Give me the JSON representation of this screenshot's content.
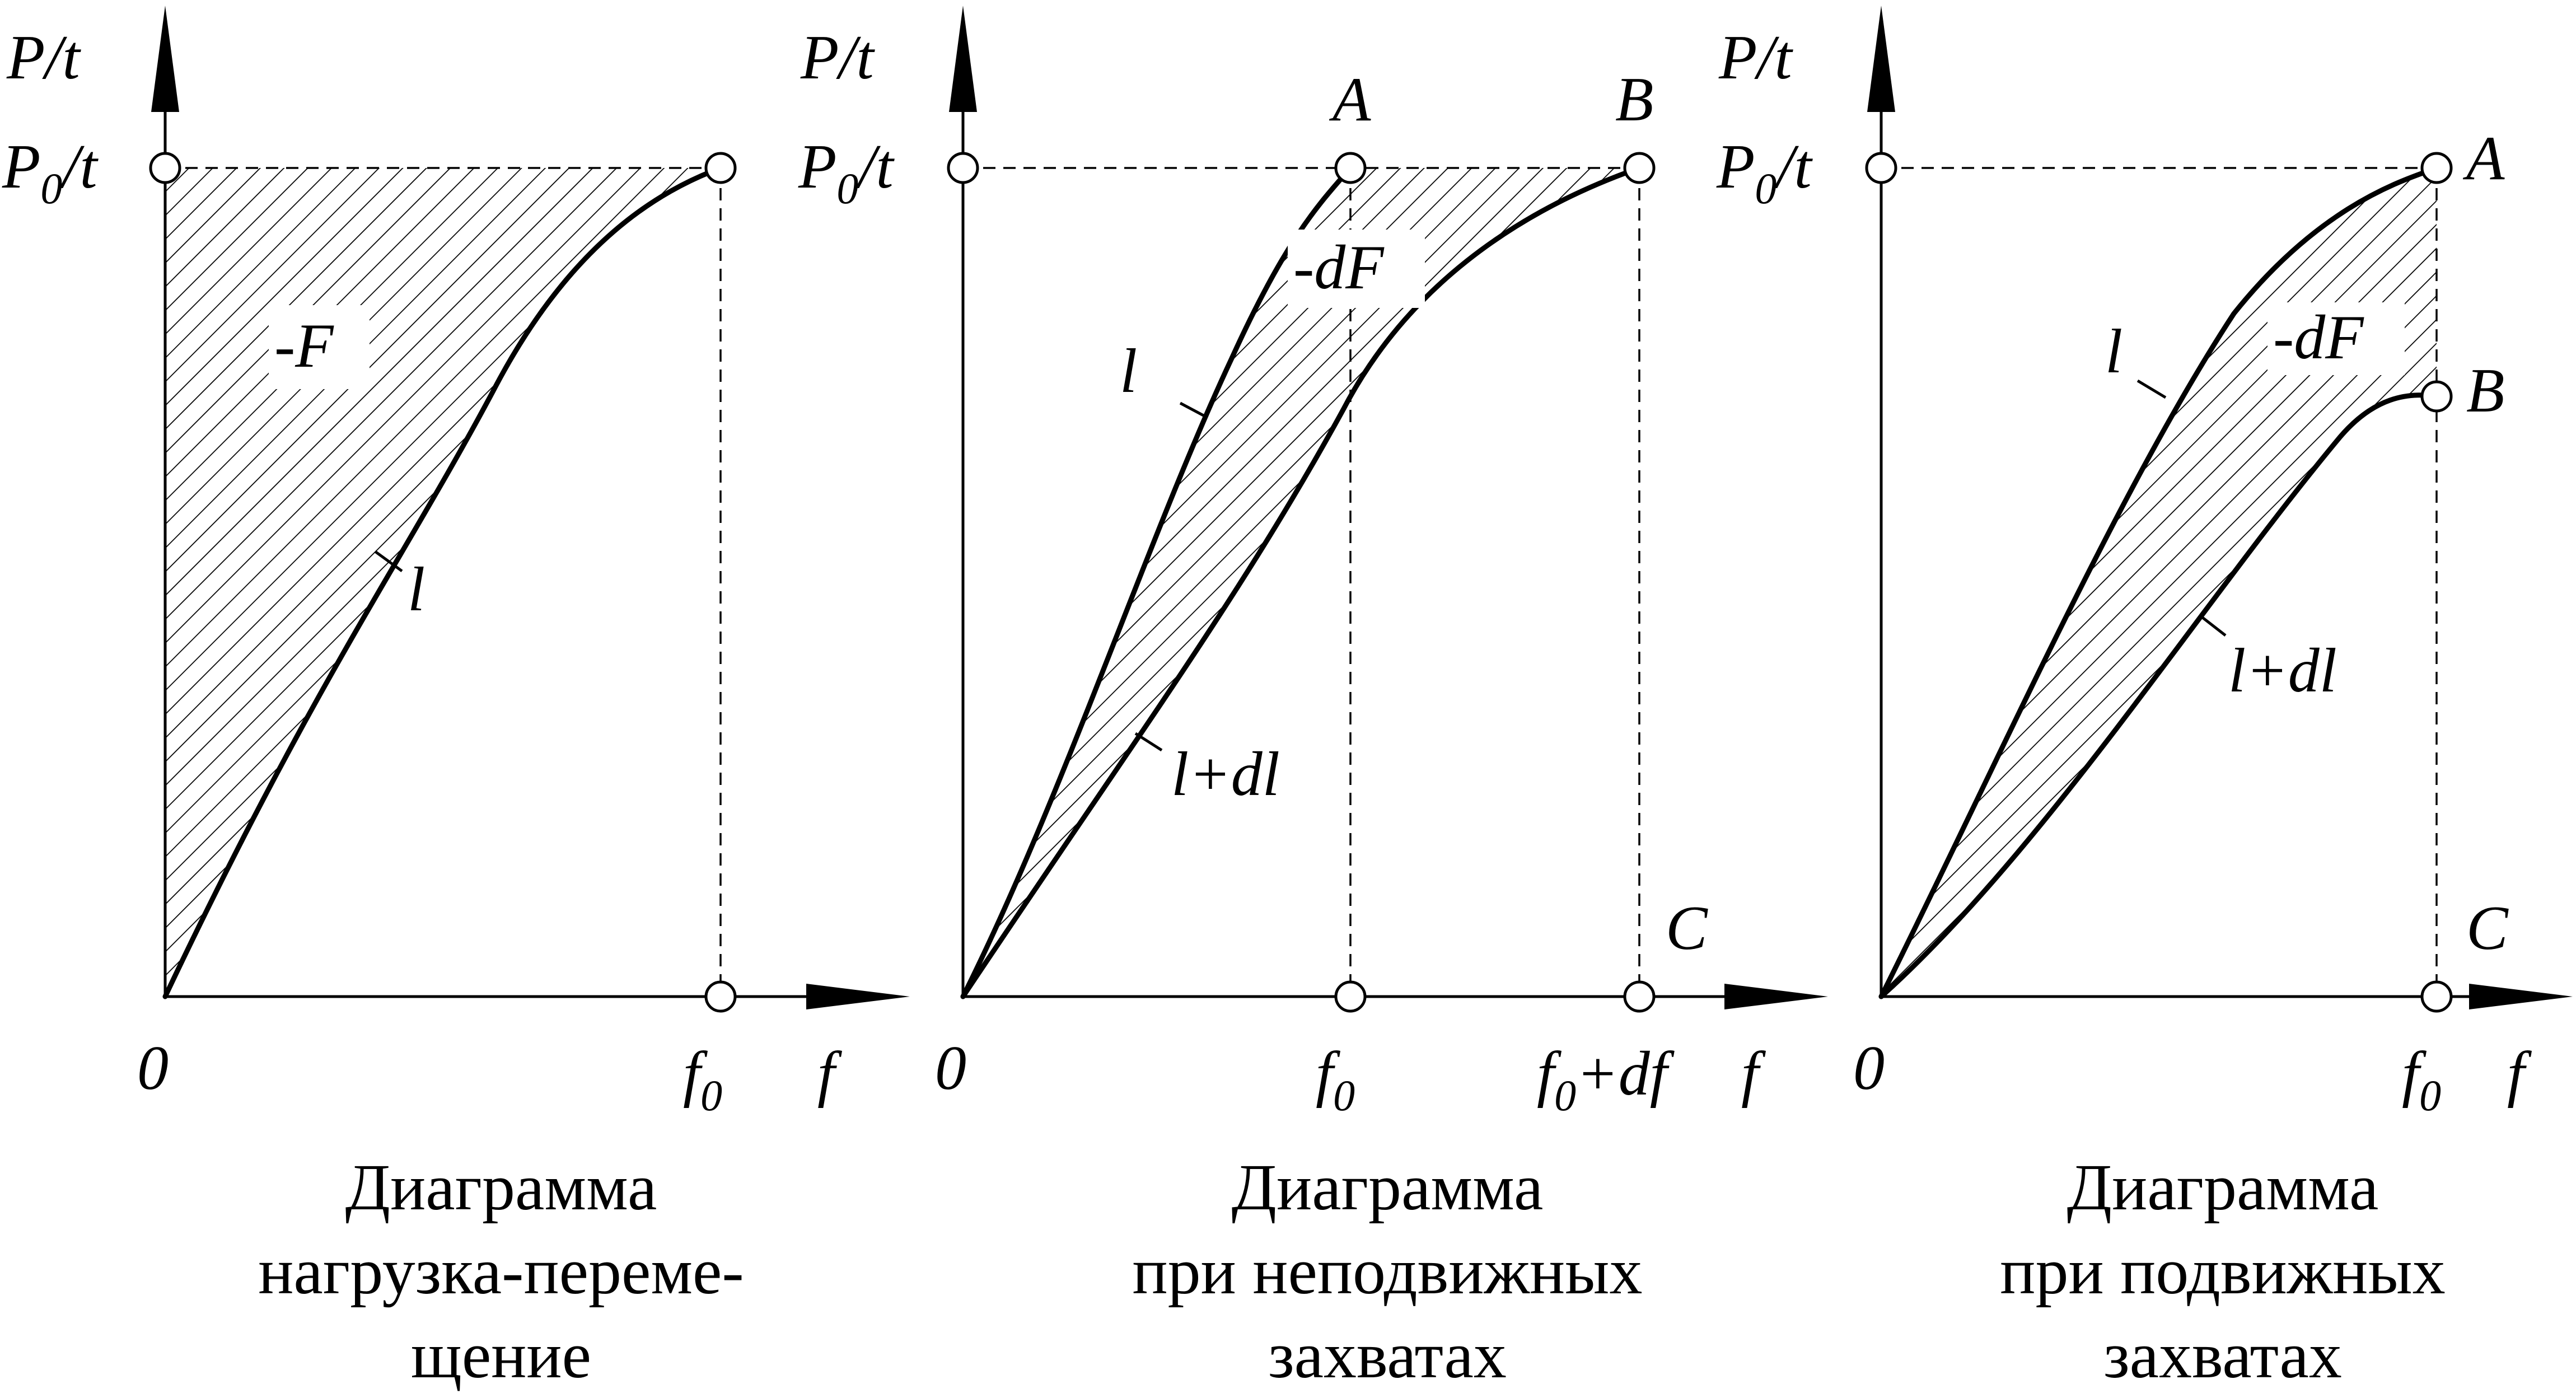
{
  "panels": [
    {
      "y_axis_label": "P/t",
      "y_tick_label": "P",
      "y_tick_sub": "0",
      "y_tick_suffix": "/t",
      "x_origin": "0",
      "x_tick_label": "f",
      "x_tick_sub": "0",
      "x_axis_label": "f",
      "area_label": "-F",
      "curve_label": "l",
      "caption": [
        "Диаграмма",
        "нагрузка-переме-",
        "щение"
      ]
    },
    {
      "y_axis_label": "P/t",
      "y_tick_label": "P",
      "y_tick_sub": "0",
      "y_tick_suffix": "/t",
      "x_origin": "0",
      "x_tick1_label": "f",
      "x_tick1_sub": "0",
      "x_tick2_label": "f",
      "x_tick2_sub": "0",
      "x_tick2_suffix": "+df",
      "x_axis_label": "f",
      "point_a": "A",
      "point_b": "B",
      "point_c": "C",
      "area_label": "-dF",
      "curve1_label": "l",
      "curve2_label": "l+dl",
      "caption": [
        "Диаграмма",
        "при неподвижных",
        "захватах"
      ]
    },
    {
      "y_axis_label": "P/t",
      "y_tick_label": "P",
      "y_tick_sub": "0",
      "y_tick_suffix": "/t",
      "x_origin": "0",
      "x_tick_label": "f",
      "x_tick_sub": "0",
      "x_axis_label": "f",
      "point_a": "A",
      "point_b": "B",
      "point_c": "C",
      "area_label": "-dF",
      "curve1_label": "l",
      "curve2_label": "l+dl",
      "caption": [
        "Диаграмма",
        "при подвижных",
        "захватах"
      ]
    }
  ]
}
